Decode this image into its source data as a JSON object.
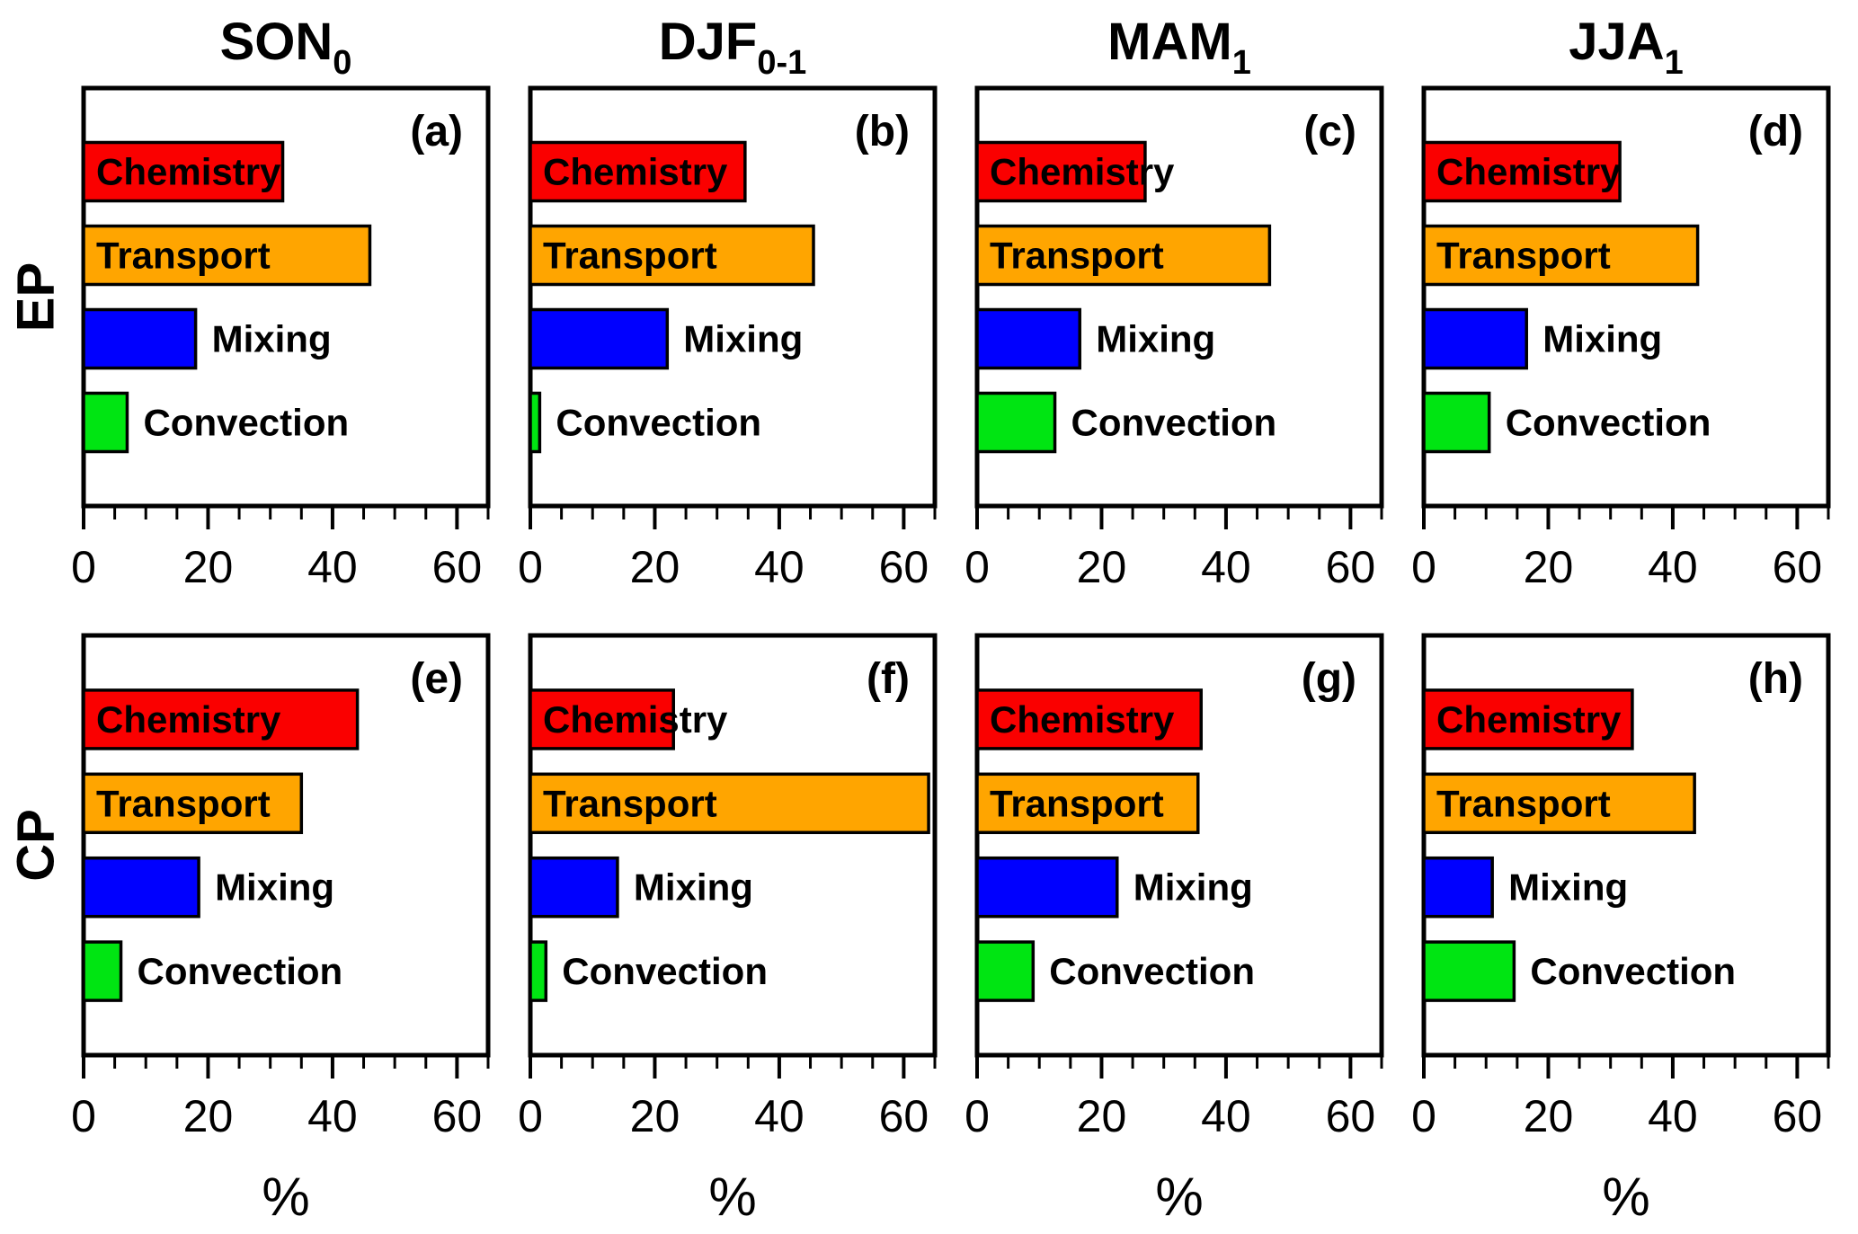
{
  "figure": {
    "background": "#ffffff",
    "row_labels": [
      "EP",
      "CP"
    ],
    "column_titles": [
      {
        "text": "SON",
        "sub": "0"
      },
      {
        "text": "DJF",
        "sub": "0-1"
      },
      {
        "text": "MAM",
        "sub": "1"
      },
      {
        "text": "JJA",
        "sub": "1"
      }
    ],
    "bar_colors": {
      "Chemistry": "#fa0000",
      "Transport": "#ffa500",
      "Mixing": "#0000ff",
      "Convection": "#00e512"
    },
    "bar_outline": "#000000",
    "xlabel": "%"
  },
  "chart_data": [
    {
      "type": "bar",
      "orientation": "horizontal",
      "panel": "(a)",
      "row": "EP",
      "title": {
        "text": "SON",
        "sub": "0"
      },
      "categories": [
        "Chemistry",
        "Transport",
        "Mixing",
        "Convection"
      ],
      "values": [
        32,
        46,
        18,
        7
      ],
      "xlabel": "%",
      "xlim": [
        0,
        65
      ],
      "xticks": [
        0,
        20,
        40,
        60
      ],
      "minor_tick_step": 5
    },
    {
      "type": "bar",
      "orientation": "horizontal",
      "panel": "(b)",
      "row": "EP",
      "title": {
        "text": "DJF",
        "sub": "0-1"
      },
      "categories": [
        "Chemistry",
        "Transport",
        "Mixing",
        "Convection"
      ],
      "values": [
        34.5,
        45.5,
        22,
        1.5
      ],
      "xlabel": "%",
      "xlim": [
        0,
        65
      ],
      "xticks": [
        0,
        20,
        40,
        60
      ],
      "minor_tick_step": 5
    },
    {
      "type": "bar",
      "orientation": "horizontal",
      "panel": "(c)",
      "row": "EP",
      "title": {
        "text": "MAM",
        "sub": "1"
      },
      "categories": [
        "Chemistry",
        "Transport",
        "Mixing",
        "Convection"
      ],
      "values": [
        27,
        47,
        16.5,
        12.5
      ],
      "xlabel": "%",
      "xlim": [
        0,
        65
      ],
      "xticks": [
        0,
        20,
        40,
        60
      ],
      "minor_tick_step": 5
    },
    {
      "type": "bar",
      "orientation": "horizontal",
      "panel": "(d)",
      "row": "EP",
      "title": {
        "text": "JJA",
        "sub": "1"
      },
      "categories": [
        "Chemistry",
        "Transport",
        "Mixing",
        "Convection"
      ],
      "values": [
        31.5,
        44,
        16.5,
        10.5
      ],
      "xlabel": "%",
      "xlim": [
        0,
        65
      ],
      "xticks": [
        0,
        20,
        40,
        60
      ],
      "minor_tick_step": 5
    },
    {
      "type": "bar",
      "orientation": "horizontal",
      "panel": "(e)",
      "row": "CP",
      "title": {
        "text": "SON",
        "sub": "0"
      },
      "categories": [
        "Chemistry",
        "Transport",
        "Mixing",
        "Convection"
      ],
      "values": [
        44,
        35,
        18.5,
        6
      ],
      "xlabel": "%",
      "xlim": [
        0,
        65
      ],
      "xticks": [
        0,
        20,
        40,
        60
      ],
      "minor_tick_step": 5
    },
    {
      "type": "bar",
      "orientation": "horizontal",
      "panel": "(f)",
      "row": "CP",
      "title": {
        "text": "DJF",
        "sub": "0-1"
      },
      "categories": [
        "Chemistry",
        "Transport",
        "Mixing",
        "Convection"
      ],
      "values": [
        23,
        64,
        14,
        2.5
      ],
      "xlabel": "%",
      "xlim": [
        0,
        65
      ],
      "xticks": [
        0,
        20,
        40,
        60
      ],
      "minor_tick_step": 5
    },
    {
      "type": "bar",
      "orientation": "horizontal",
      "panel": "(g)",
      "row": "CP",
      "title": {
        "text": "MAM",
        "sub": "1"
      },
      "categories": [
        "Chemistry",
        "Transport",
        "Mixing",
        "Convection"
      ],
      "values": [
        36,
        35.5,
        22.5,
        9
      ],
      "xlabel": "%",
      "xlim": [
        0,
        65
      ],
      "xticks": [
        0,
        20,
        40,
        60
      ],
      "minor_tick_step": 5
    },
    {
      "type": "bar",
      "orientation": "horizontal",
      "panel": "(h)",
      "row": "CP",
      "title": {
        "text": "JJA",
        "sub": "1"
      },
      "categories": [
        "Chemistry",
        "Transport",
        "Mixing",
        "Convection"
      ],
      "values": [
        33.5,
        43.5,
        11,
        14.5
      ],
      "xlabel": "%",
      "xlim": [
        0,
        65
      ],
      "xticks": [
        0,
        20,
        40,
        60
      ],
      "minor_tick_step": 5
    }
  ]
}
